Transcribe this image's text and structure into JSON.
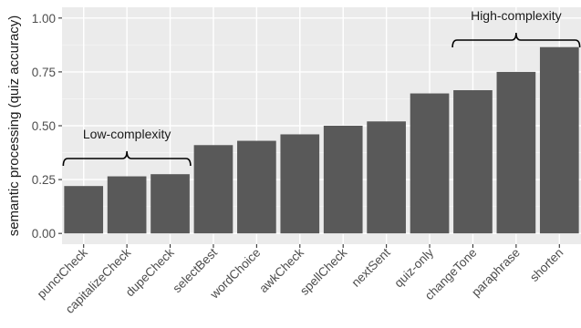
{
  "chart_data": {
    "type": "bar",
    "categories": [
      "punctCheck",
      "capitalizeCheck",
      "dupeCheck",
      "selectBest",
      "wordChoice",
      "awkCheck",
      "spellCheck",
      "nextSent",
      "quiz-only",
      "changeTone",
      "paraphrase",
      "shorten"
    ],
    "values": [
      0.22,
      0.265,
      0.275,
      0.41,
      0.43,
      0.46,
      0.5,
      0.52,
      0.65,
      0.665,
      0.75,
      0.865
    ],
    "title": "",
    "xlabel": "",
    "ylabel": "semantic processing (quiz accuracy)",
    "ylim": [
      -0.05,
      1.05
    ],
    "yticks": [
      "0.00",
      "0.25",
      "0.50",
      "0.75",
      "1.00"
    ],
    "grid": true,
    "legend": "none",
    "annotations": [
      {
        "text": "Low-complexity",
        "from": "punctCheck",
        "to": "dupeCheck"
      },
      {
        "text": "High-complexity",
        "from": "changeTone",
        "to": "shorten"
      }
    ],
    "colors": {
      "bar": "#595959",
      "panel": "#ebebeb",
      "grid_major": "#ffffff",
      "grid_minor": "#f5f5f5"
    }
  }
}
